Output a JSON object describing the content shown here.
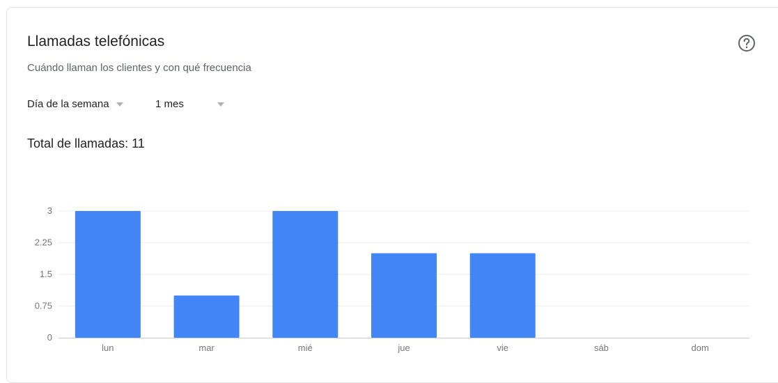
{
  "card": {
    "title": "Llamadas telefónicas",
    "subtitle": "Cuándo llaman los clientes y con qué frecuencia",
    "help_icon": "help-circle-icon"
  },
  "filters": {
    "group_by": "Día de la semana",
    "period": "1 mes"
  },
  "summary": {
    "total_label": "Total de llamadas: 11"
  },
  "colors": {
    "bar": "#4285f4",
    "gridline": "#eeeeee",
    "axis": "#cccccc"
  },
  "chart_data": {
    "type": "bar",
    "categories": [
      "lun",
      "mar",
      "mié",
      "jue",
      "vie",
      "sáb",
      "dom"
    ],
    "values": [
      3,
      1,
      3,
      2,
      2,
      0,
      0
    ],
    "yticks": [
      "0",
      "0.75",
      "1.5",
      "2.25",
      "3"
    ],
    "ylim": [
      0,
      3
    ],
    "grid": true,
    "legend": "none"
  }
}
